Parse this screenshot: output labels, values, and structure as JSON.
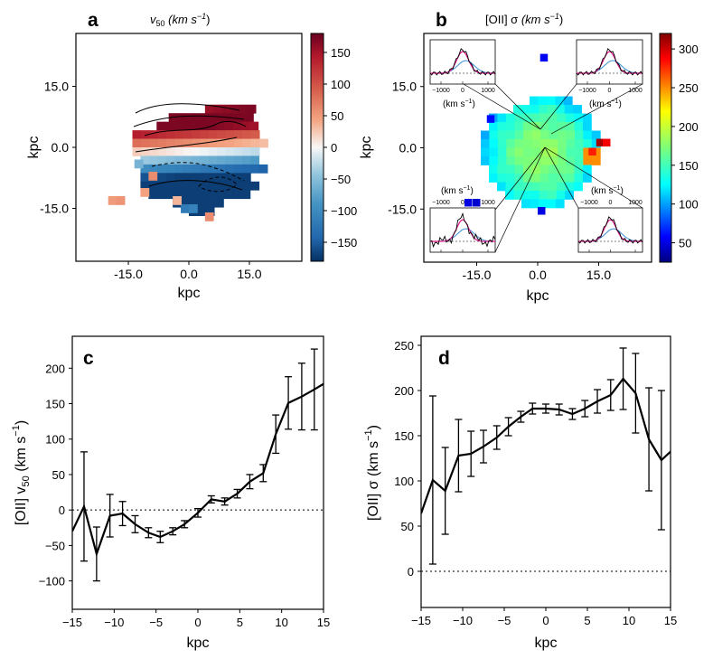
{
  "chart_data": [
    {
      "type": "heatmap",
      "panel": "a",
      "title": "v50 (km s^-1)",
      "title_main": "v",
      "title_sub": "50",
      "title_units": " (km s",
      "title_exp": "−1",
      "title_close": ")",
      "xlabel": "kpc",
      "ylabel": "kpc",
      "xticks": [
        "-15.0",
        "0.0",
        "15.0"
      ],
      "yticks": [
        "15.0",
        "0.0",
        "-15.0"
      ],
      "xlim": [
        -28,
        28
      ],
      "ylim": [
        -28,
        28
      ],
      "colorbar": {
        "range": [
          -180,
          180
        ],
        "ticks": [
          "150",
          "100",
          "50",
          "0",
          "−50",
          "−100",
          "−150"
        ],
        "tick_values": [
          150,
          100,
          50,
          0,
          -50,
          -100,
          -150
        ]
      }
    },
    {
      "type": "heatmap",
      "panel": "b",
      "title": "[OII] σ (km s^-1)",
      "title_main": "[OII] σ",
      "title_units": " (km s",
      "title_exp": "−1",
      "title_close": ")",
      "xlabel": "kpc",
      "ylabel": "kpc",
      "xticks": [
        "-15.0",
        "0.0",
        "15.0"
      ],
      "yticks": [
        "15.0",
        "0.0",
        "-15.0"
      ],
      "xlim": [
        -28,
        28
      ],
      "ylim": [
        -28,
        28
      ],
      "colorbar": {
        "range": [
          25,
          320
        ],
        "ticks": [
          "300",
          "250",
          "200",
          "150",
          "100",
          "50"
        ],
        "tick_values": [
          300,
          250,
          200,
          150,
          100,
          50
        ]
      },
      "insets": [
        {
          "position": "top-left",
          "ticks": [
            "−1000",
            "0",
            "1000"
          ],
          "label": "(km s",
          "label_exp": "−1",
          "label_close": ")"
        },
        {
          "position": "top-right",
          "ticks": [
            "−1000",
            "0",
            "1000"
          ],
          "label": "(km s",
          "label_exp": "−1",
          "label_close": ")"
        },
        {
          "position": "bottom-left",
          "ticks": [
            "−1000",
            "0",
            "1000"
          ],
          "label": "(km s",
          "label_exp": "−1",
          "label_close": ")"
        },
        {
          "position": "bottom-right",
          "ticks": [
            "−1000",
            "0",
            "1000"
          ],
          "label": "(km s",
          "label_exp": "−1",
          "label_close": ")"
        }
      ]
    },
    {
      "type": "line",
      "panel": "c",
      "xlabel": "kpc",
      "ylabel_pre": "[OII]  v",
      "ylabel_sub": "50",
      "ylabel_units": " (km s",
      "ylabel_exp": "−1",
      "ylabel_close": ")",
      "xlim": [
        -15,
        15
      ],
      "ylim": [
        -140,
        245
      ],
      "xticks": [
        -15,
        -10,
        -5,
        0,
        5,
        10,
        15
      ],
      "xtick_labels": [
        "−15",
        "−10",
        "−5",
        "0",
        "5",
        "10",
        "15"
      ],
      "yticks": [
        200,
        150,
        100,
        50,
        0,
        -50,
        -100
      ],
      "ytick_labels": [
        "200",
        "150",
        "100",
        "50",
        "0",
        "−50",
        "−100"
      ],
      "reference_line": 0,
      "series": [
        {
          "name": "[OII] v50",
          "x": [
            -15,
            -13.6,
            -12.1,
            -10.5,
            -9,
            -7.5,
            -5.9,
            -4.5,
            -3,
            -1.6,
            0,
            1.6,
            3.2,
            4.7,
            6.2,
            7.8,
            9.3,
            10.8,
            12.4,
            13.9,
            15.3
          ],
          "y": [
            -30,
            5,
            -62,
            -8,
            -5,
            -20,
            -32,
            -38,
            -30,
            -20,
            -4,
            15,
            12,
            23,
            40,
            52,
            107,
            151,
            160,
            170,
            180
          ],
          "err": [
            0,
            77,
            38,
            30,
            17,
            12,
            7,
            8,
            5,
            5,
            6,
            5,
            5,
            6,
            10,
            12,
            27,
            37,
            47,
            57,
            0
          ]
        }
      ]
    },
    {
      "type": "line",
      "panel": "d",
      "xlabel": "kpc",
      "ylabel_pre": "[OII] σ (km s",
      "ylabel_exp": "−1",
      "ylabel_close": ")",
      "xlim": [
        -15,
        15
      ],
      "ylim": [
        -40,
        260
      ],
      "xticks": [
        -15,
        -10,
        -5,
        0,
        5,
        10,
        15
      ],
      "xtick_labels": [
        "−15",
        "−10",
        "−5",
        "0",
        "5",
        "10",
        "15"
      ],
      "yticks": [
        250,
        200,
        150,
        100,
        50,
        0
      ],
      "ytick_labels": [
        "250",
        "200",
        "150",
        "100",
        "50",
        "0"
      ],
      "reference_line": 0,
      "series": [
        {
          "name": "[OII] σ",
          "x": [
            -15,
            -13.6,
            -12.1,
            -10.5,
            -9,
            -7.5,
            -5.9,
            -4.5,
            -3,
            -1.6,
            0,
            1.6,
            3.2,
            4.7,
            6.2,
            7.8,
            9.3,
            10.8,
            12.4,
            13.9,
            15.3
          ],
          "y": [
            64,
            101,
            89,
            128,
            130,
            138,
            148,
            160,
            171,
            180,
            180,
            179,
            174,
            180,
            188,
            195,
            213,
            197,
            146,
            123,
            135
          ],
          "err": [
            0,
            93,
            48,
            40,
            25,
            18,
            13,
            10,
            6,
            6,
            5,
            6,
            6,
            9,
            13,
            17,
            34,
            44,
            57,
            77,
            0
          ]
        }
      ]
    }
  ],
  "labels": {
    "panel_a": "a",
    "panel_b": "b",
    "panel_c": "c",
    "panel_d": "d"
  }
}
